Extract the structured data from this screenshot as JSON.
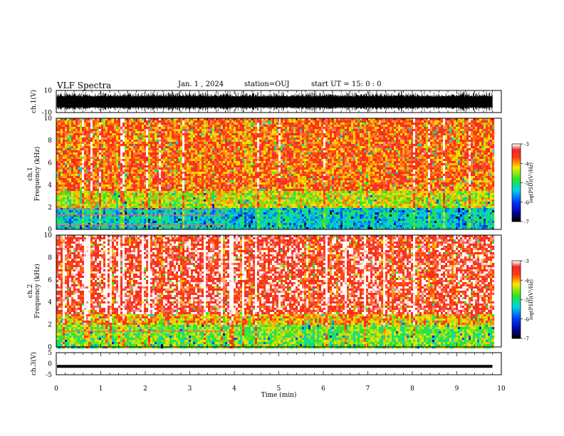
{
  "header": {
    "title": "VLF Spectra",
    "date": "Jan. 1 , 2024",
    "station": "station=OUJ",
    "start": "start  UT =  15: 0  : 0"
  },
  "chart_data": [
    {
      "type": "line",
      "ylabel": "ch.1(V)",
      "ylim": [
        -10,
        10
      ],
      "yticks": [
        "10",
        "-10"
      ],
      "xlim": [
        0,
        10
      ],
      "note": "dense black waveform oscillating roughly between -10 and 10 V"
    },
    {
      "type": "heatmap",
      "ylabel": "ch.1\nFrequency (kHz)",
      "ylim": [
        0,
        10
      ],
      "yticks": [
        "0",
        "2",
        "4",
        "6",
        "8",
        "10"
      ],
      "xlim": [
        0,
        10
      ],
      "data_end_min": 9.8,
      "colorbar": {
        "label": "log(PSD)(V²/Hz)",
        "ticks": [
          "-3",
          "-4",
          "-5",
          "-6",
          "-7"
        ],
        "range": [
          -7,
          -3
        ]
      },
      "bands": [
        {
          "from_khz": 0,
          "to_khz": 2,
          "level": -5.3
        },
        {
          "from_khz": 2,
          "to_khz": 3.5,
          "level": -4.3
        },
        {
          "from_khz": 3.5,
          "to_khz": 10,
          "level": -3.7
        }
      ],
      "tone_lines_khz": [
        0.4,
        1.3,
        1.8
      ],
      "tone_lines_end_min": 3.8
    },
    {
      "type": "heatmap",
      "ylabel": "ch.2\nFrequency (kHz)",
      "ylim": [
        0,
        10
      ],
      "yticks": [
        "0",
        "2",
        "4",
        "6",
        "8",
        "10"
      ],
      "xlim": [
        0,
        10
      ],
      "data_end_min": 9.8,
      "colorbar": {
        "label": "log(PSD)(V²/Hz)",
        "ticks": [
          "-3",
          "-4",
          "-5",
          "-6",
          "-7"
        ],
        "range": [
          -7,
          -3
        ]
      },
      "bands": [
        {
          "from_khz": 0,
          "to_khz": 2,
          "level": -4.6
        },
        {
          "from_khz": 2,
          "to_khz": 3,
          "level": -4.0
        },
        {
          "from_khz": 3,
          "to_khz": 10,
          "level": -3.3
        }
      ],
      "tone_lines_khz": [
        1.4
      ],
      "tone_lines_end_min": 3.8
    },
    {
      "type": "line",
      "ylabel": "ch.3(V)",
      "ylim": [
        -5,
        5
      ],
      "yticks": [
        "5",
        "0",
        "-5"
      ],
      "xlim": [
        0,
        10
      ],
      "xticks": [
        "0",
        "1",
        "2",
        "3",
        "4",
        "5",
        "6",
        "7",
        "8",
        "9",
        "10"
      ],
      "xlabel": "Time (min)",
      "level_v": -1.2,
      "data_end_min": 9.8
    }
  ]
}
